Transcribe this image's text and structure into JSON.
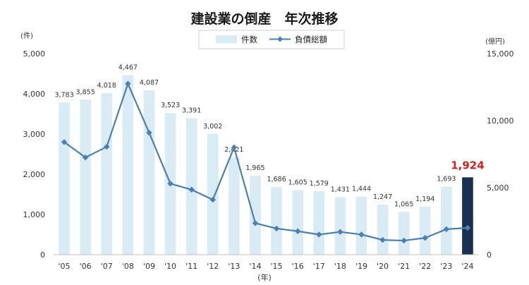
{
  "chart_data": {
    "type": "bar",
    "title": "建設業の倒産　年次推移",
    "xlabel": "(年)",
    "ylabel_left": "(件)",
    "ylabel_right": "(億円)",
    "categories": [
      "'05",
      "'06",
      "'07",
      "'08",
      "'09",
      "'10",
      "'11",
      "'12",
      "'13",
      "'14",
      "'15",
      "'16",
      "'17",
      "'18",
      "'19",
      "'20",
      "'21",
      "'22",
      "'23",
      "'24"
    ],
    "series": [
      {
        "name": "件数",
        "type": "bar",
        "axis": "left",
        "color": "#d9ebf4",
        "highlight_color": "#1a2f52",
        "highlight_index": 19,
        "values": [
          3783,
          3855,
          4018,
          4467,
          4087,
          3523,
          3391,
          3002,
          2421,
          1965,
          1686,
          1605,
          1579,
          1431,
          1444,
          1247,
          1065,
          1194,
          1693,
          1924
        ],
        "value_labels": [
          "3,783",
          "3,855",
          "4,018",
          "4,467",
          "4,087",
          "3,523",
          "3,391",
          "3,002",
          "2,421",
          "1,965",
          "1,686",
          "1,605",
          "1,579",
          "1,431",
          "1,444",
          "1,247",
          "1,065",
          "1,194",
          "1,693",
          "1,924"
        ]
      },
      {
        "name": "負債総額",
        "type": "line",
        "axis": "right",
        "color": "#4a7fb0",
        "values": [
          8400,
          7250,
          8050,
          12750,
          9100,
          5300,
          4850,
          4100,
          8000,
          2350,
          1950,
          1750,
          1500,
          1700,
          1500,
          1100,
          1050,
          1250,
          1900,
          2000
        ]
      }
    ],
    "ylim_left": [
      0,
      5000
    ],
    "yticks_left": [
      "0",
      "1,000",
      "2,000",
      "3,000",
      "4,000",
      "5,000"
    ],
    "ylim_right": [
      0,
      15000
    ],
    "yticks_right": [
      "0",
      "5,000",
      "10,000",
      "15,000"
    ],
    "grid": false,
    "legend_position": "top-center"
  }
}
